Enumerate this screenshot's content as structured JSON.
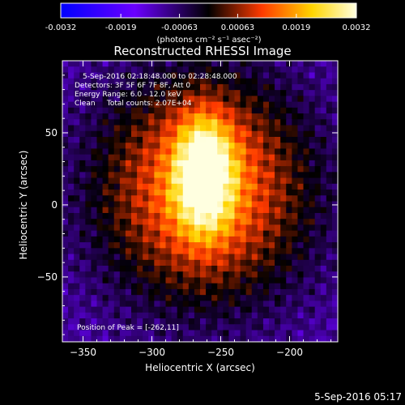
{
  "colorbar": {
    "ticks": [
      "-0.0032",
      "-0.0019",
      "-0.00063",
      "0.00063",
      "0.0019",
      "0.0032"
    ],
    "tick_values": [
      -0.0032,
      -0.0019,
      -0.00063,
      0.00063,
      0.0019,
      0.0032
    ],
    "unit_label": "(photons cm⁻² s⁻¹ asec⁻²)",
    "range": [
      -0.0032,
      0.0032
    ],
    "colors": [
      "#0000ff",
      "#6a00ff",
      "#000000",
      "#ff3a00",
      "#ffd400",
      "#ffffe0"
    ]
  },
  "chart_data": {
    "type": "heatmap",
    "title": "Reconstructed RHESSI Image",
    "xlabel": "Heliocentric X (arcsec)",
    "ylabel": "Heliocentric Y (arcsec)",
    "xlim": [
      -365,
      -165
    ],
    "ylim": [
      -95,
      100
    ],
    "x_ticks": [
      -350,
      -300,
      -250,
      -200
    ],
    "x_tick_labels": [
      "−350",
      "−300",
      "−250",
      "−200"
    ],
    "y_ticks": [
      -50,
      0,
      50
    ],
    "y_tick_labels": [
      "−50",
      "0",
      "50"
    ],
    "peak": [
      -262,
      11
    ],
    "annotations": [
      "5-Sep-2016 02:18:48.000 to 02:28:48.000",
      "Detectors: 3F 5F 6F 7F 8F, Att 0",
      "Energy Range: 6.0 - 12.0 keV",
      "Clean     Total counts: 2.07E+04"
    ],
    "peak_label": "Position of Peak = [-262,11]"
  },
  "footer": {
    "timestamp": "5-Sep-2016 05:17"
  }
}
